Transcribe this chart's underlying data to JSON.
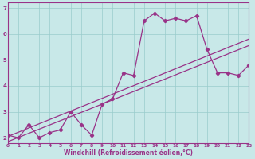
{
  "xlabel": "Windchill (Refroidissement éolien,°C)",
  "bg_color": "#c8e8e8",
  "line_color": "#993388",
  "grid_color": "#99cccc",
  "x_data": [
    0,
    1,
    2,
    3,
    4,
    5,
    6,
    7,
    8,
    9,
    10,
    11,
    12,
    13,
    14,
    15,
    16,
    17,
    18,
    19,
    20,
    21,
    22,
    23
  ],
  "y_main": [
    2.1,
    2.0,
    2.5,
    2.0,
    2.2,
    2.3,
    3.0,
    2.5,
    2.1,
    3.3,
    3.5,
    4.5,
    4.4,
    6.5,
    6.8,
    6.5,
    6.6,
    6.5,
    6.7,
    5.4,
    4.5,
    4.5,
    4.4,
    4.8
  ],
  "y_line1_start": 2.05,
  "y_line1_end": 5.8,
  "y_line2_start": 1.85,
  "y_line2_end": 5.55,
  "xlim": [
    0,
    23
  ],
  "ylim": [
    1.8,
    7.2
  ],
  "yticks": [
    2,
    3,
    4,
    5,
    6,
    7
  ],
  "xticks": [
    0,
    1,
    2,
    3,
    4,
    5,
    6,
    7,
    8,
    9,
    10,
    11,
    12,
    13,
    14,
    15,
    16,
    17,
    18,
    19,
    20,
    21,
    22,
    23
  ]
}
